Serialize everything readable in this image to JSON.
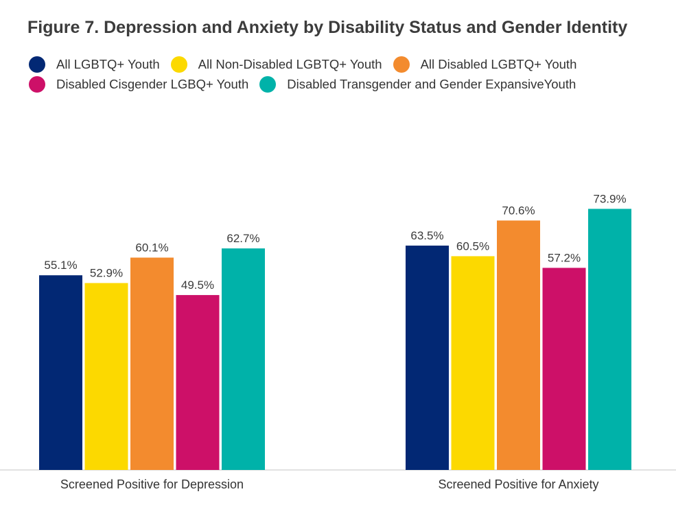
{
  "chart_data": {
    "type": "bar",
    "title": "Figure 7. Depression and Anxiety by Disability Status and Gender Identity",
    "categories": [
      "Screened Positive for Depression",
      "Screened Positive for Anxiety"
    ],
    "series": [
      {
        "name": "All LGBTQ+ Youth",
        "color": "#022874",
        "values": [
          55.1,
          63.5
        ],
        "labels": [
          "55.1%",
          "63.5%"
        ]
      },
      {
        "name": "All Non-Disabled LGBTQ+ Youth",
        "color": "#fcd900",
        "values": [
          52.9,
          60.5
        ],
        "labels": [
          "52.9%",
          "60.5%"
        ]
      },
      {
        "name": "All Disabled LGBTQ+ Youth",
        "color": "#f38b2e",
        "values": [
          60.1,
          70.6
        ],
        "labels": [
          "60.1%",
          "70.6%"
        ]
      },
      {
        "name": "Disabled Cisgender LGBQ+ Youth",
        "color": "#cd1068",
        "values": [
          49.5,
          57.2
        ],
        "labels": [
          "49.5%",
          "57.2%"
        ]
      },
      {
        "name": "Disabled Transgender and Gender ExpansiveYouth",
        "color": "#00b2a9",
        "values": [
          62.7,
          73.9
        ],
        "labels": [
          "62.7%",
          "73.9%"
        ]
      }
    ],
    "xlabel": "",
    "ylabel": "",
    "ylim": [
      0,
      100
    ],
    "grid": false,
    "legend": "top"
  }
}
